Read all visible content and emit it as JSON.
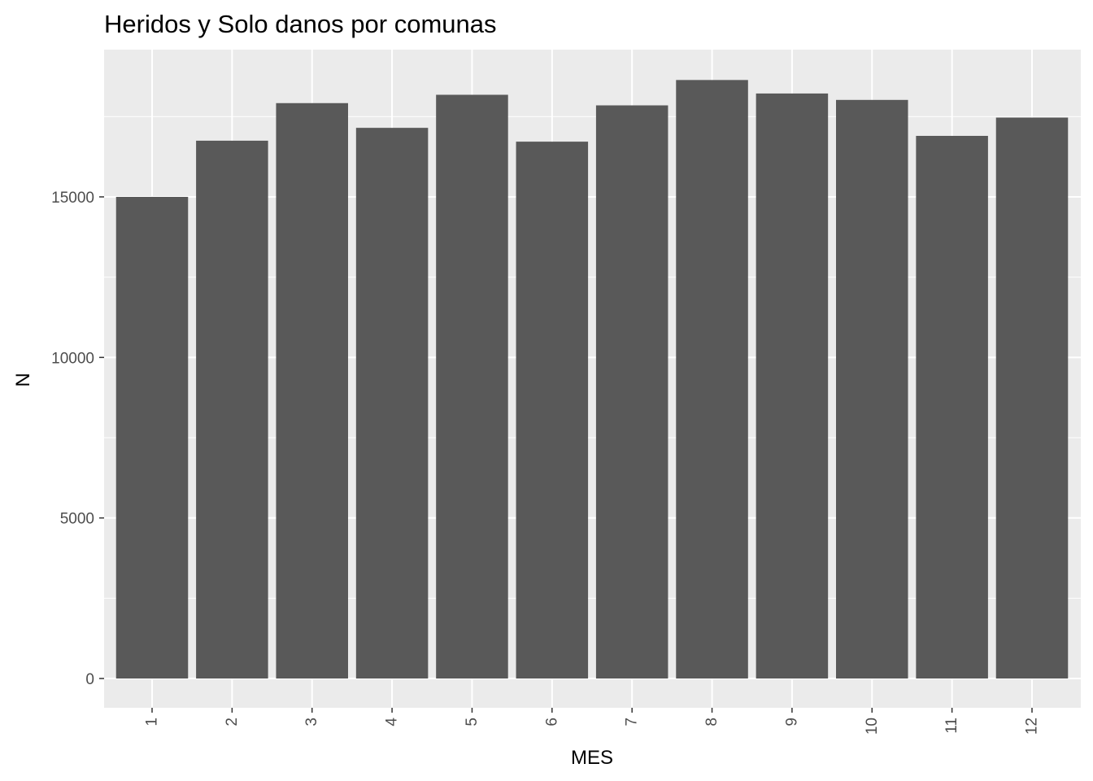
{
  "chart_data": {
    "type": "bar",
    "title": "Heridos y Solo danos por comunas",
    "xlabel": "MES",
    "ylabel": "N",
    "categories": [
      "1",
      "2",
      "3",
      "4",
      "5",
      "6",
      "7",
      "8",
      "9",
      "10",
      "11",
      "12"
    ],
    "values": [
      15000,
      16750,
      17920,
      17150,
      18180,
      16720,
      17850,
      18640,
      18220,
      18020,
      16900,
      17470
    ],
    "ylim": [
      -900,
      19350
    ],
    "yticks": [
      0,
      5000,
      10000,
      15000
    ],
    "yticks_minor": [
      2500,
      7500,
      12500,
      17500
    ],
    "grid": true,
    "legend": "none",
    "colors": {
      "bar": "#595959",
      "panel": "#ebebeb",
      "grid": "#ffffff",
      "tick_text": "#4d4d4d",
      "tick_mark": "#333333"
    }
  }
}
